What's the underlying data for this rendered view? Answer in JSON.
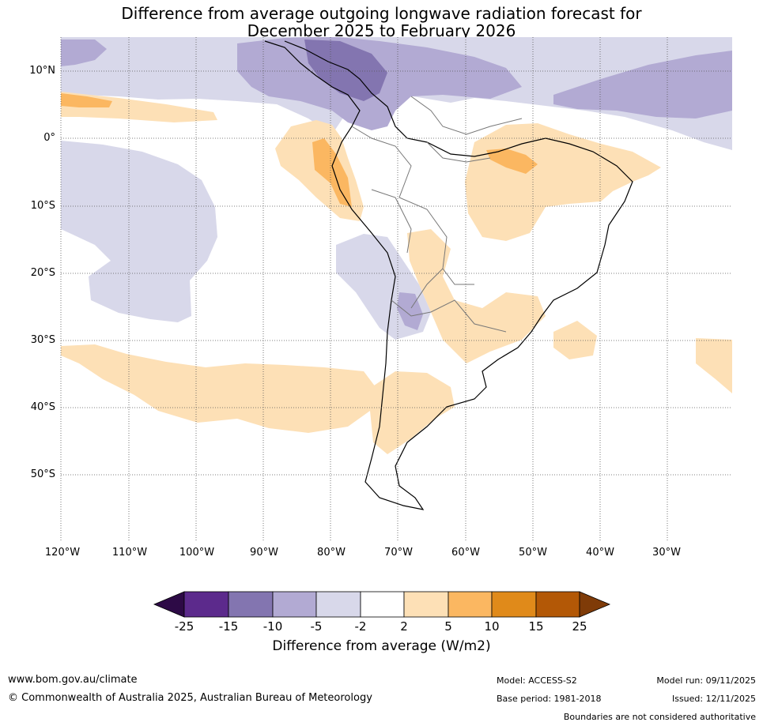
{
  "title": {
    "line1": "Difference from average outgoing longwave radiation forecast for",
    "line2": "December 2025 to February 2026"
  },
  "map": {
    "lat_labels": [
      "10°N",
      "0°",
      "10°S",
      "20°S",
      "30°S",
      "40°S",
      "50°S"
    ],
    "lon_labels": [
      "120°W",
      "110°W",
      "100°W",
      "90°W",
      "80°W",
      "70°W",
      "60°W",
      "50°W",
      "40°W",
      "30°W"
    ],
    "colors": {
      "ocean_bg": "#ffffff",
      "neg_25": "#2d0a46",
      "neg_15_25": "#5c2a8c",
      "neg_10_15": "#8375b0",
      "neg_5_10": "#b2aad3",
      "neg_2_5": "#d8d8ea",
      "pos_2_5": "#fde0b6",
      "pos_5_10": "#fbb761",
      "pos_10_15": "#e08a1a",
      "pos_15_25": "#b35806",
      "pos_25": "#7f3b08"
    }
  },
  "colorbar": {
    "ticks": [
      "-25",
      "-15",
      "-10",
      "-5",
      "-2",
      "2",
      "5",
      "10",
      "15",
      "25"
    ],
    "label": "Difference from average (W/m2)"
  },
  "footer": {
    "website": "www.bom.gov.au/climate",
    "copyright": "© Commonwealth of Australia 2025, Australian Bureau of Meteorology",
    "model": "Model: ACCESS-S2",
    "base_period": "Base period: 1981-2018",
    "model_run": "Model run: 09/11/2025",
    "issued": "Issued: 12/11/2025",
    "disclaimer": "Boundaries are not considered authoritative"
  }
}
